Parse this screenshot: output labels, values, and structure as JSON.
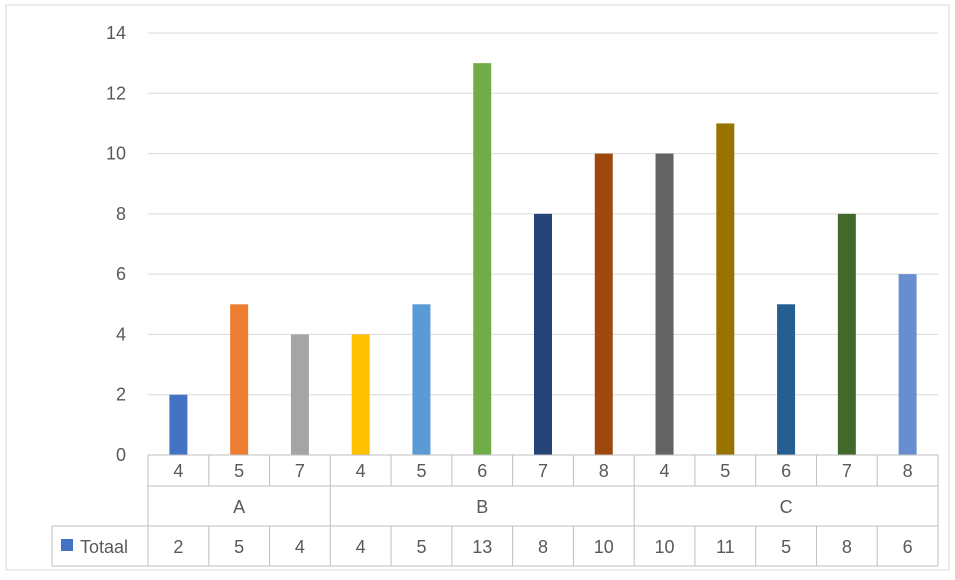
{
  "chart_data": {
    "type": "bar",
    "title": "",
    "xlabel": "",
    "ylabel": "",
    "ylim": [
      0,
      14
    ],
    "yticks": [
      0,
      2,
      4,
      6,
      8,
      10,
      12,
      14
    ],
    "grid": true,
    "legend": "data-table",
    "groups": [
      {
        "label": "A",
        "categories": [
          "4",
          "5",
          "7"
        ]
      },
      {
        "label": "B",
        "categories": [
          "4",
          "5",
          "6",
          "7",
          "8"
        ]
      },
      {
        "label": "C",
        "categories": [
          "4",
          "5",
          "6",
          "7",
          "8"
        ]
      }
    ],
    "series": [
      {
        "name": "Totaal",
        "values": [
          2,
          5,
          4,
          4,
          5,
          13,
          8,
          10,
          10,
          11,
          5,
          8,
          6
        ]
      }
    ],
    "bar_colors": [
      "#4472C4",
      "#ED7D31",
      "#A5A5A5",
      "#FFC000",
      "#5B9BD5",
      "#70AD47",
      "#264478",
      "#9E480E",
      "#636363",
      "#997300",
      "#255E91",
      "#43682B",
      "#698ED0"
    ],
    "legend_key_color": "#4472C4"
  }
}
